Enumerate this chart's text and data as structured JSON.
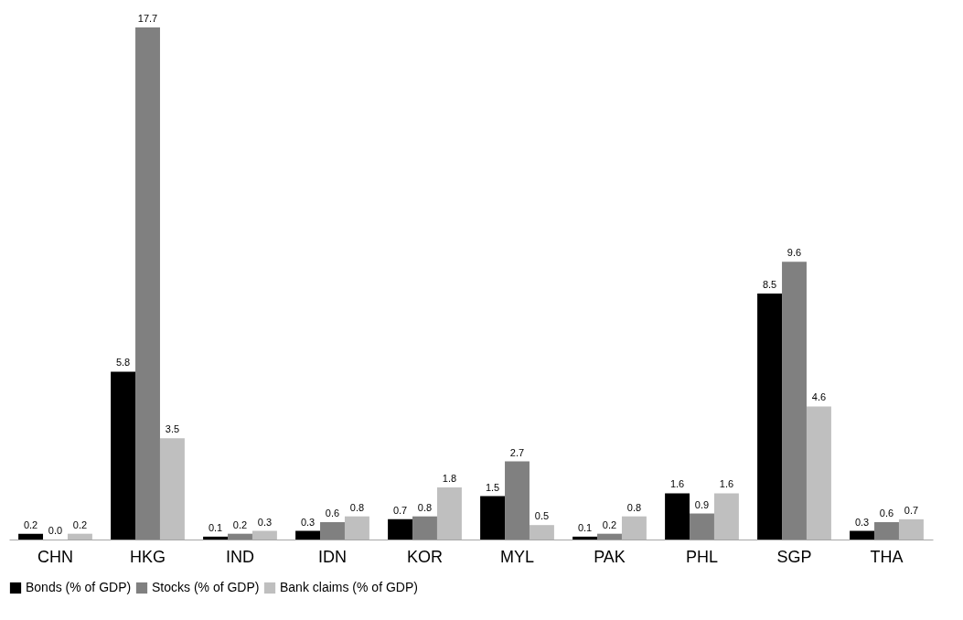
{
  "chart_data": {
    "type": "bar",
    "categories": [
      "CHN",
      "HKG",
      "IND",
      "IDN",
      "KOR",
      "MYL",
      "PAK",
      "PHL",
      "SGP",
      "THA"
    ],
    "series": [
      {
        "name": "Bonds (% of GDP)",
        "color": "#000000",
        "values": [
          0.2,
          5.8,
          0.1,
          0.3,
          0.7,
          1.5,
          0.1,
          1.6,
          8.5,
          0.3
        ],
        "value_labels": [
          "0.2",
          "5.8",
          "0.1",
          "0.3",
          "0.7",
          "1.5",
          "0.1",
          "1.6",
          "8.5",
          "0.3"
        ]
      },
      {
        "name": "Stocks (% of GDP)",
        "color": "#808080",
        "values": [
          0.0,
          17.7,
          0.2,
          0.6,
          0.8,
          2.7,
          0.2,
          0.9,
          9.6,
          0.6
        ],
        "value_labels": [
          "0.0",
          "17.7",
          "0.2",
          "0.6",
          "0.8",
          "2.7",
          "0.2",
          "0.9",
          "9.6",
          "0.6"
        ]
      },
      {
        "name": "Bank claims (% of GDP)",
        "color": "#bfbfbf",
        "values": [
          0.2,
          3.5,
          0.3,
          0.8,
          1.8,
          0.5,
          0.8,
          1.6,
          4.6,
          0.7
        ],
        "value_labels": [
          "0.2",
          "3.5",
          "0.3",
          "0.8",
          "1.8",
          "0.5",
          "0.8",
          "1.6",
          "4.6",
          "0.7"
        ]
      }
    ],
    "legend": "bottom"
  }
}
